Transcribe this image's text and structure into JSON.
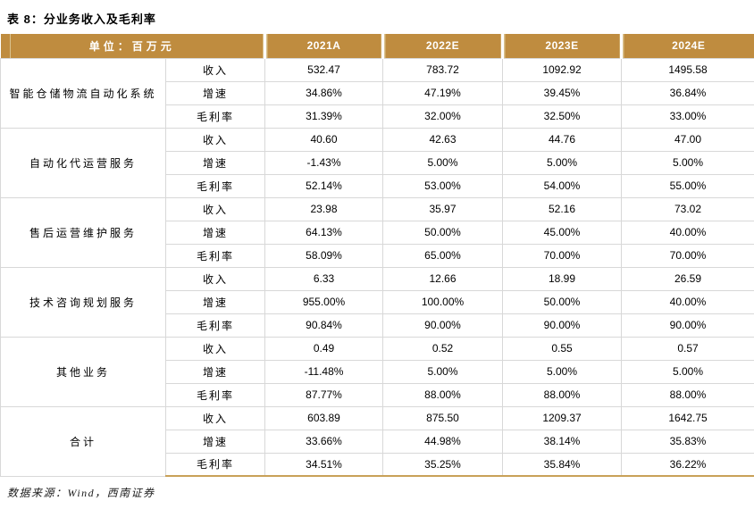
{
  "title": "表 8：分业务收入及毛利率",
  "table": {
    "unit_header": "单位：百万元",
    "year_columns": [
      "2021A",
      "2022E",
      "2023E",
      "2024E"
    ],
    "metric_labels": [
      "收入",
      "增速",
      "毛利率"
    ],
    "groups": [
      {
        "name": "智能仓储物流自动化系统",
        "rows": [
          [
            "532.47",
            "783.72",
            "1092.92",
            "1495.58"
          ],
          [
            "34.86%",
            "47.19%",
            "39.45%",
            "36.84%"
          ],
          [
            "31.39%",
            "32.00%",
            "32.50%",
            "33.00%"
          ]
        ]
      },
      {
        "name": "自动化代运营服务",
        "rows": [
          [
            "40.60",
            "42.63",
            "44.76",
            "47.00"
          ],
          [
            "-1.43%",
            "5.00%",
            "5.00%",
            "5.00%"
          ],
          [
            "52.14%",
            "53.00%",
            "54.00%",
            "55.00%"
          ]
        ]
      },
      {
        "name": "售后运营维护服务",
        "rows": [
          [
            "23.98",
            "35.97",
            "52.16",
            "73.02"
          ],
          [
            "64.13%",
            "50.00%",
            "45.00%",
            "40.00%"
          ],
          [
            "58.09%",
            "65.00%",
            "70.00%",
            "70.00%"
          ]
        ]
      },
      {
        "name": "技术咨询规划服务",
        "rows": [
          [
            "6.33",
            "12.66",
            "18.99",
            "26.59"
          ],
          [
            "955.00%",
            "100.00%",
            "50.00%",
            "40.00%"
          ],
          [
            "90.84%",
            "90.00%",
            "90.00%",
            "90.00%"
          ]
        ]
      },
      {
        "name": "其他业务",
        "rows": [
          [
            "0.49",
            "0.52",
            "0.55",
            "0.57"
          ],
          [
            "-11.48%",
            "5.00%",
            "5.00%",
            "5.00%"
          ],
          [
            "87.77%",
            "88.00%",
            "88.00%",
            "88.00%"
          ]
        ]
      },
      {
        "name": "合计",
        "rows": [
          [
            "603.89",
            "875.50",
            "1209.37",
            "1642.75"
          ],
          [
            "33.66%",
            "44.98%",
            "38.14%",
            "35.83%"
          ],
          [
            "34.51%",
            "35.25%",
            "35.84%",
            "36.22%"
          ]
        ]
      }
    ]
  },
  "footer": "数据来源：Wind，西南证券",
  "colors": {
    "header_bg": "#BF8C3F",
    "header_stripe": "#DAC28E",
    "bottom_line": "#C9A158",
    "cell_border": "#D8D8D8"
  }
}
